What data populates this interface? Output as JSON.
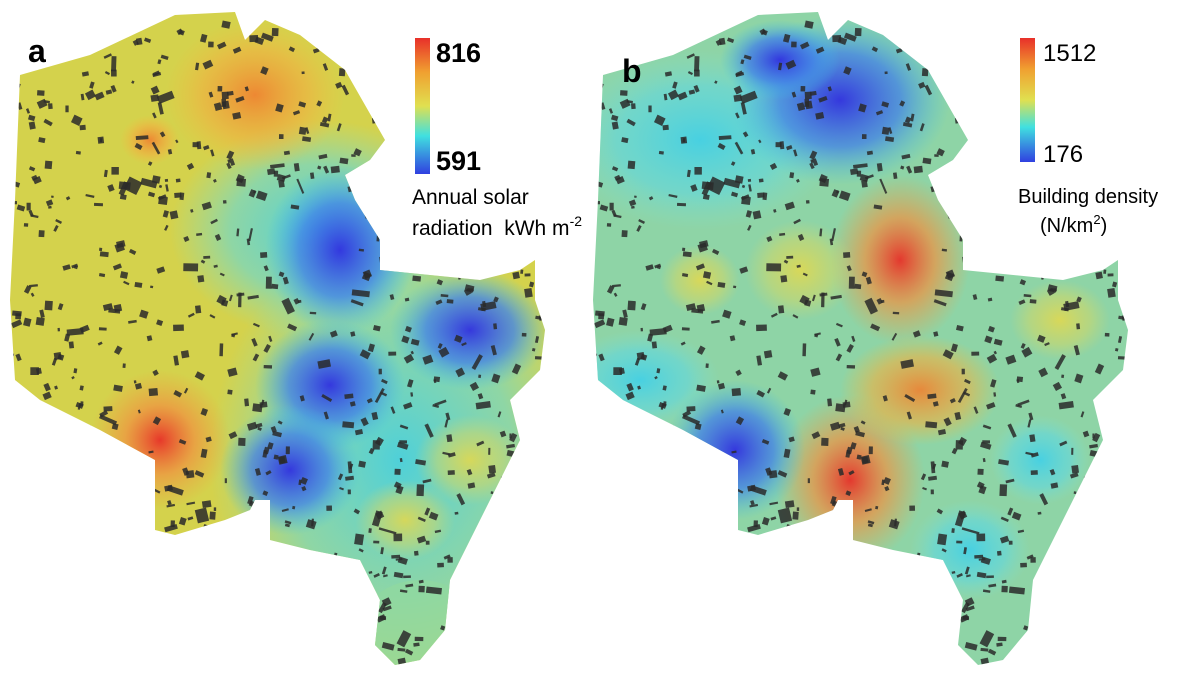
{
  "panels": [
    {
      "label": "a",
      "colorbar": {
        "max": 816,
        "min": 591
      },
      "legend": [
        {
          "text": "Annual solar"
        },
        {
          "text": "radiation  kWh m",
          "sup": "-2"
        }
      ]
    },
    {
      "label": "b",
      "colorbar": {
        "max": 1512,
        "min": 176
      },
      "legend": [
        {
          "text": "Building density"
        },
        {
          "text": "(N/km",
          "sup": "2",
          "after": ")"
        }
      ]
    }
  ]
}
